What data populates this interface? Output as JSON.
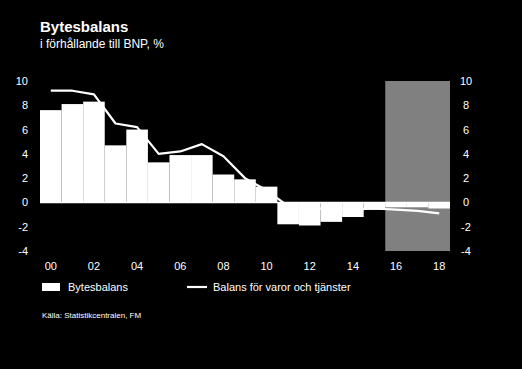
{
  "chart_data": {
    "type": "bar",
    "title": "Bytesbalans",
    "subtitle": "i förhållande till BNP, %",
    "source": "Källa: Statistikcentralen, FM",
    "categories": [
      "00",
      null,
      "02",
      null,
      "04",
      null,
      "06",
      null,
      "08",
      null,
      "10",
      null,
      "12",
      null,
      "14",
      null,
      "16",
      null,
      "18"
    ],
    "series": [
      {
        "name": "Bytesbalans",
        "type": "bar",
        "color": "#ffffff",
        "values": [
          7.6,
          8.1,
          8.3,
          4.7,
          6.0,
          3.3,
          3.9,
          3.9,
          2.3,
          1.9,
          1.3,
          -1.8,
          -1.9,
          -1.6,
          -1.2,
          -0.6,
          -0.4,
          -0.4,
          -0.5
        ]
      },
      {
        "name": "Balans för varor och tjänster",
        "type": "line",
        "color": "#ffffff",
        "values": [
          9.2,
          9.2,
          8.9,
          6.5,
          6.2,
          4.0,
          4.2,
          4.8,
          3.8,
          2.0,
          1.0,
          -0.3,
          -0.6,
          -0.4,
          -0.6,
          -0.5,
          -0.6,
          -0.7,
          -0.9
        ]
      }
    ],
    "forecast": {
      "start_index": 16,
      "end_index": 18
    },
    "ylim": [
      -4,
      10
    ],
    "yticks": [
      -4,
      -2,
      0,
      2,
      4,
      6,
      8,
      10
    ],
    "y2lim": [
      -4,
      10
    ],
    "y2ticks": [
      -4,
      -2,
      0,
      2,
      4,
      6,
      8,
      10
    ],
    "tick_labels": true,
    "legend": "bottom"
  }
}
